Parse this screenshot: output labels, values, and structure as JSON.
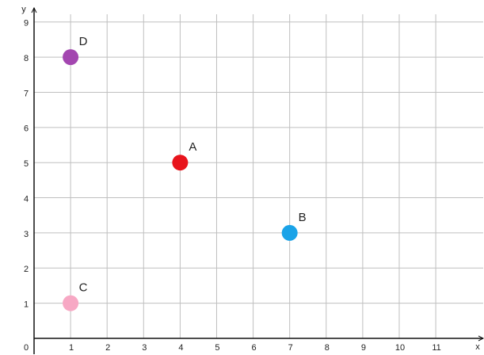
{
  "chart_data": {
    "type": "scatter",
    "x_label": "x",
    "y_label": "y",
    "xlim": [
      0,
      12.3
    ],
    "ylim": [
      0,
      9.4
    ],
    "xticks": [
      0,
      1,
      2,
      3,
      4,
      5,
      6,
      7,
      8,
      9,
      10,
      11
    ],
    "yticks": [
      1,
      2,
      3,
      4,
      5,
      6,
      7,
      8,
      9
    ],
    "grid": true,
    "series": [
      {
        "name": "A",
        "color": "#e8141c",
        "x": [
          4
        ],
        "values": [
          5
        ]
      },
      {
        "name": "B",
        "color": "#1aa3e8",
        "x": [
          7
        ],
        "values": [
          3
        ]
      },
      {
        "name": "C",
        "color": "#f7a8c4",
        "x": [
          1
        ],
        "values": [
          1
        ]
      },
      {
        "name": "D",
        "color": "#a346b0",
        "x": [
          1
        ],
        "values": [
          8
        ]
      }
    ]
  }
}
